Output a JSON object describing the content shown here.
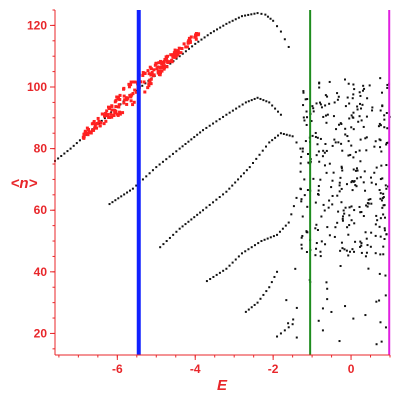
{
  "chart_data": {
    "type": "scatter",
    "title": "",
    "xlabel": "E",
    "ylabel": "<n>",
    "xlim": [
      -7.6,
      1.0
    ],
    "ylim": [
      13,
      125
    ],
    "x_ticks": [
      -6,
      -4,
      -2,
      0
    ],
    "x_tick_labels": [
      "-6",
      "-4",
      "-2",
      "0"
    ],
    "y_ticks": [
      20,
      40,
      60,
      80,
      100,
      120
    ],
    "y_tick_labels": [
      "20",
      "40",
      "60",
      "80",
      "100",
      "120"
    ],
    "grid": false,
    "colors": {
      "axis": "#e8262a",
      "points": "#111111",
      "highlight": "#ff2020",
      "vline_blue": "#1020ff",
      "vline_green": "#1e8c1e",
      "vline_magenta": "#e020e0"
    },
    "vertical_lines": [
      {
        "x": -5.45,
        "color": "#1020ff"
      },
      {
        "x": -1.05,
        "color": "#1e8c1e"
      },
      {
        "x": 0.98,
        "color": "#e020e0"
      }
    ],
    "series": [
      {
        "values": [
          [
            -7.6,
            76
          ],
          [
            -7.2,
            80
          ],
          [
            -6.8,
            84.5
          ],
          [
            -6.4,
            89
          ],
          [
            -6.0,
            93.5
          ],
          [
            -5.6,
            98
          ],
          [
            -5.2,
            102
          ],
          [
            -4.8,
            106
          ],
          [
            -4.4,
            110
          ],
          [
            -4.0,
            114
          ],
          [
            -3.6,
            117.5
          ],
          [
            -3.2,
            120.5
          ],
          [
            -2.8,
            123
          ],
          [
            -2.4,
            124
          ],
          [
            -2.2,
            123.5
          ],
          [
            -2.0,
            121.5
          ],
          [
            -1.8,
            118
          ],
          [
            -1.6,
            113
          ]
        ]
      },
      {
        "values": [
          [
            -6.2,
            62
          ],
          [
            -5.6,
            67
          ],
          [
            -5.0,
            74
          ],
          [
            -4.4,
            80
          ],
          [
            -3.8,
            86
          ],
          [
            -3.2,
            91
          ],
          [
            -2.7,
            95
          ],
          [
            -2.4,
            96.5
          ],
          [
            -2.1,
            95
          ],
          [
            -1.8,
            91
          ]
        ]
      },
      {
        "values": [
          [
            -4.9,
            48
          ],
          [
            -4.4,
            54
          ],
          [
            -3.8,
            60
          ],
          [
            -3.2,
            66
          ],
          [
            -2.6,
            74
          ],
          [
            -2.1,
            82
          ],
          [
            -1.8,
            85
          ],
          [
            -1.5,
            84
          ],
          [
            -1.3,
            80
          ]
        ]
      },
      {
        "values": [
          [
            -3.7,
            37
          ],
          [
            -3.2,
            41
          ],
          [
            -2.8,
            46
          ],
          [
            -2.3,
            50
          ],
          [
            -1.9,
            52
          ],
          [
            -1.6,
            56
          ],
          [
            -1.4,
            64
          ],
          [
            -1.2,
            70
          ]
        ]
      },
      {
        "values": [
          [
            -2.7,
            27
          ],
          [
            -2.4,
            30
          ],
          [
            -2.1,
            35
          ],
          [
            -1.9,
            40
          ]
        ]
      },
      {
        "values": [
          [
            -1.9,
            19
          ],
          [
            -1.7,
            21
          ],
          [
            -1.5,
            23
          ]
        ]
      }
    ]
  }
}
